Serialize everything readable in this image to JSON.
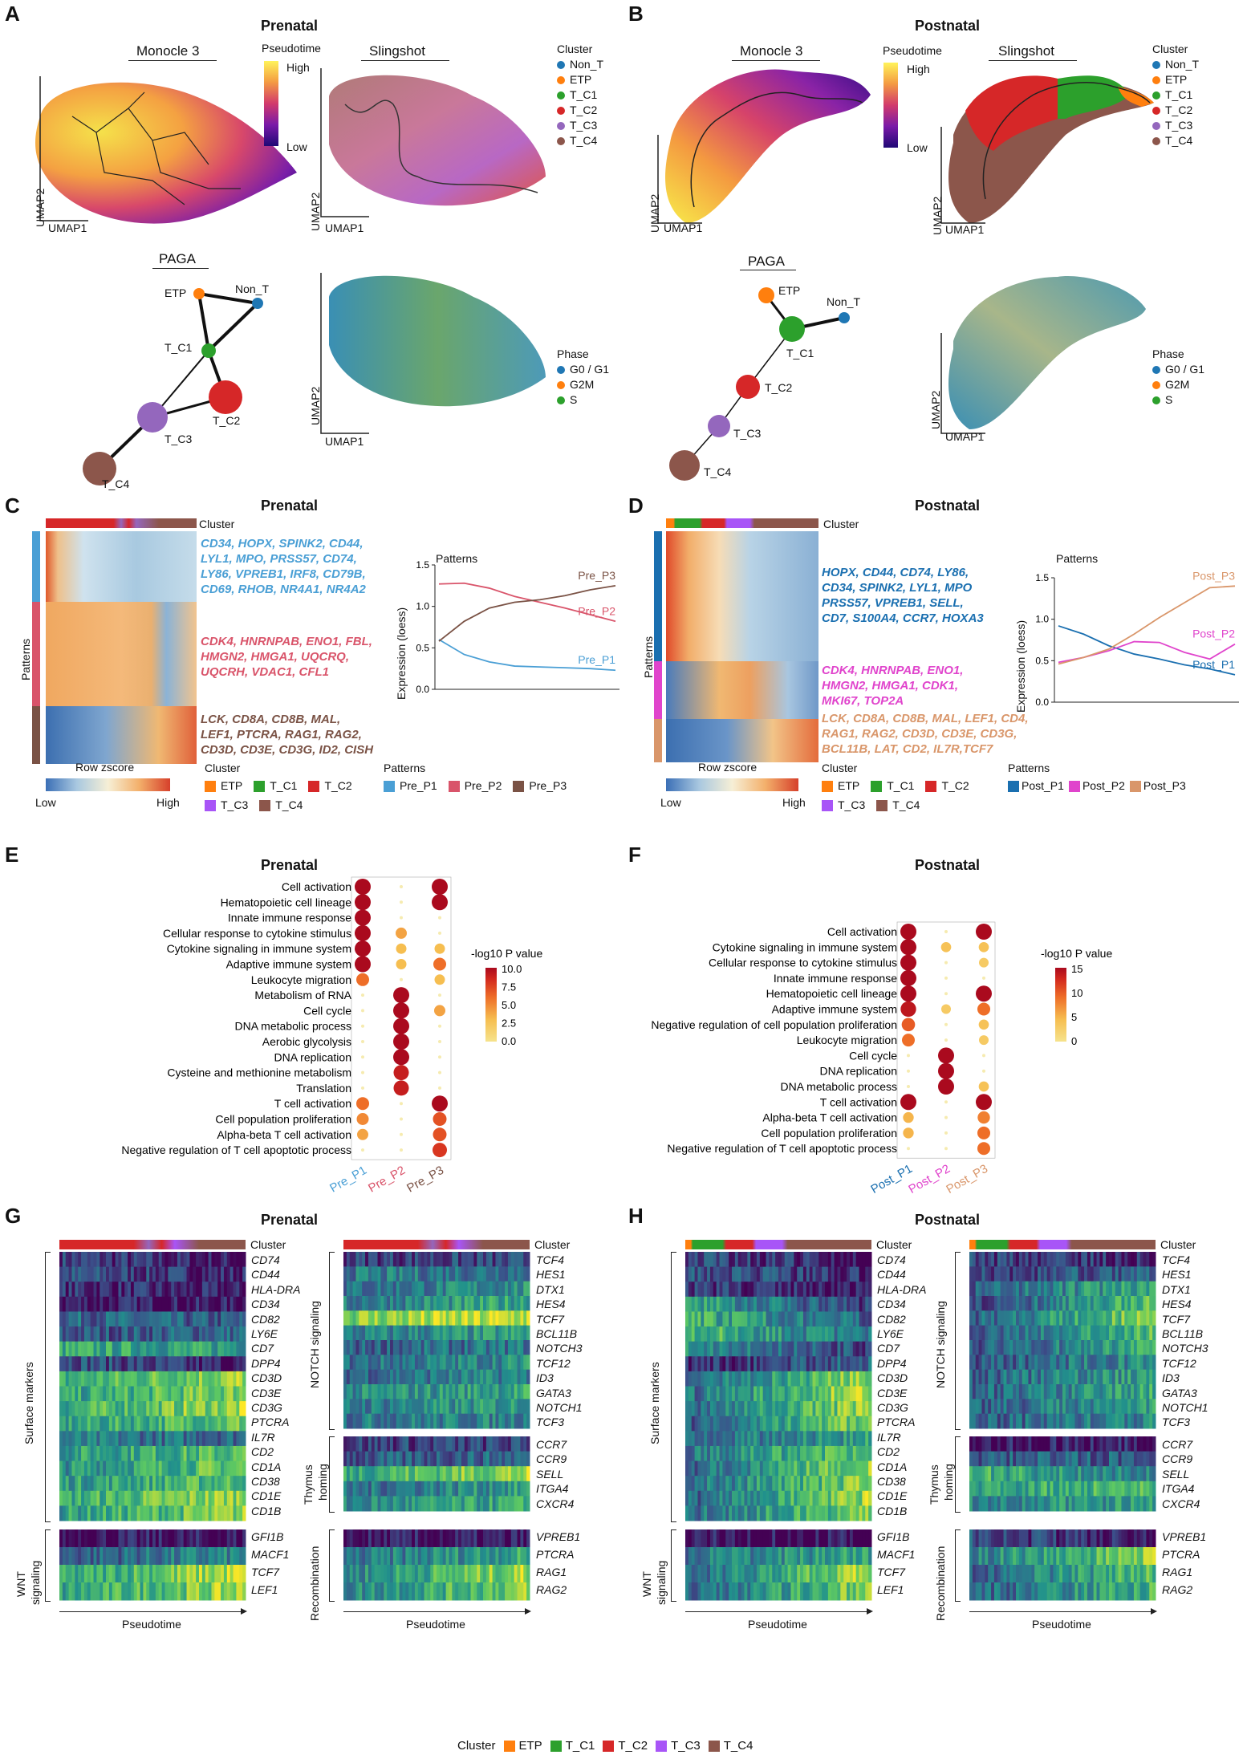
{
  "panels": {
    "A": {
      "label": "A",
      "title": "Prenatal"
    },
    "B": {
      "label": "B",
      "title": "Postnatal"
    },
    "C": {
      "label": "C",
      "title": "Prenatal"
    },
    "D": {
      "label": "D",
      "title": "Postnatal"
    },
    "E": {
      "label": "E",
      "title": "Prenatal"
    },
    "F": {
      "label": "F",
      "title": "Postnatal"
    },
    "G": {
      "label": "G",
      "title": "Prenatal"
    },
    "H": {
      "label": "H",
      "title": "Postnatal"
    }
  },
  "umap": {
    "monocle": "Monocle 3",
    "slingshot": "Slingshot",
    "paga": "PAGA",
    "umap1": "UMAP1",
    "umap2": "UMAP2",
    "pseudotime": "Pseudotime",
    "high": "High",
    "low": "Low",
    "cluster_title": "Cluster",
    "clusters": [
      "Non_T",
      "ETP",
      "T_C1",
      "T_C2",
      "T_C3",
      "T_C4"
    ],
    "cluster_colors": [
      "#1f77b4",
      "#ff7f0e",
      "#2ca02c",
      "#d62728",
      "#9467bd",
      "#8c564b"
    ],
    "phase_title": "Phase",
    "phases": [
      "G0 / G1",
      "G2M",
      "S"
    ],
    "phase_colors": [
      "#1f77b4",
      "#ff7f0e",
      "#2ca02c"
    ],
    "paga_nodes": [
      "ETP",
      "Non_T",
      "T_C1",
      "T_C2",
      "T_C3",
      "T_C4"
    ]
  },
  "heatmap": {
    "cluster": "Cluster",
    "patterns_axis": "Patterns",
    "row_zscore": "Row zscore",
    "low": "Low",
    "high": "High",
    "legend_cluster_title": "Cluster",
    "legend_clusters": [
      "ETP",
      "T_C1",
      "T_C2",
      "T_C3",
      "T_C4"
    ],
    "legend_patterns_title": "Patterns",
    "pre_patterns": [
      "Pre_P1",
      "Pre_P2",
      "Pre_P3"
    ],
    "post_patterns": [
      "Post_P1",
      "Post_P2",
      "Post_P3"
    ],
    "pre_genes": [
      "CD34, HOPX, SPINK2, CD44,",
      "LYL1, MPO, PRSS57, CD74,",
      "LY86, VPREB1, IRF8, CD79B,",
      "CD69, RHOB, NR4A1, NR4A2",
      "CDK4, HNRNPAB, ENO1, FBL,",
      "HMGN2, HMGA1, UQCRQ,",
      "UQCRH, VDAC1, CFL1",
      "LCK, CD8A, CD8B, MAL,",
      "LEF1, PTCRA, RAG1, RAG2,",
      "CD3D, CD3E, CD3G, ID2, CISH"
    ],
    "post_genes": [
      "HOPX, CD44, CD74, LY86,",
      "CD34, SPINK2, LYL1, MPO",
      "PRSS57, VPREB1, SELL,",
      "CD7, S100A4, CCR7, HOXA3",
      "CDK4, HNRNPAB, ENO1,",
      "HMGN2, HMGA1, CDK1,",
      "MKI67, TOP2A",
      "LCK, CD8A, CD8B, MAL, LEF1, CD4,",
      "RAG1, RAG2, CD3D, CD3E, CD3G,",
      "BCL11B, LAT, CD2, IL7R,TCF7"
    ],
    "gene_colors": [
      "#4a9fd5",
      "#d9546a",
      "#7a5245"
    ],
    "post_gene_colors": [
      "#1a6fb0",
      "#e044cc",
      "#d9966a"
    ]
  },
  "chart_data": [
    {
      "type": "line",
      "title": "Patterns",
      "ylabel": "Expression (loess)",
      "ylim": [
        0.0,
        1.5
      ],
      "yticks": [
        "0.0",
        "0.5",
        "1.0",
        "1.5"
      ],
      "series": [
        {
          "name": "Pre_P1",
          "values": [
            0.6,
            0.42,
            0.33,
            0.28,
            0.27,
            0.26,
            0.25,
            0.23
          ]
        },
        {
          "name": "Pre_P2",
          "values": [
            1.27,
            1.28,
            1.22,
            1.12,
            1.05,
            0.98,
            0.9,
            0.82
          ]
        },
        {
          "name": "Pre_P3",
          "values": [
            0.58,
            0.82,
            0.98,
            1.05,
            1.08,
            1.13,
            1.2,
            1.25
          ]
        }
      ]
    },
    {
      "type": "line",
      "title": "Patterns",
      "ylabel": "Expression (loess)",
      "ylim": [
        0.0,
        1.5
      ],
      "yticks": [
        "0.0",
        "0.5",
        "1.0",
        "1.5"
      ],
      "series": [
        {
          "name": "Post_P1",
          "values": [
            0.92,
            0.82,
            0.68,
            0.58,
            0.52,
            0.45,
            0.4,
            0.33
          ]
        },
        {
          "name": "Post_P2",
          "values": [
            0.48,
            0.54,
            0.62,
            0.73,
            0.72,
            0.6,
            0.52,
            0.7
          ]
        },
        {
          "name": "Post_P3",
          "values": [
            0.46,
            0.54,
            0.64,
            0.82,
            1.02,
            1.2,
            1.38,
            1.4
          ]
        }
      ]
    },
    {
      "type": "scatter",
      "title": "Prenatal",
      "legend_title": "-log10 P value",
      "legend_ticks": [
        "10.0",
        "7.5",
        "5.0",
        "2.5",
        "0.0"
      ],
      "vmax": 10,
      "categories": [
        "Pre_P1",
        "Pre_P2",
        "Pre_P3"
      ],
      "terms": [
        "Cell activation",
        "Hematopoietic cell lineage",
        "Innate immune response",
        "Cellular response to cytokine stimulus",
        "Cytokine signaling in immune system",
        "Adaptive immune system",
        "Leukocyte migration",
        "Metabolism of RNA",
        "Cell cycle",
        "DNA metabolic process",
        "Aerobic glycolysis",
        "DNA replication",
        "Cysteine and methionine metabolism",
        "Translation",
        "T cell activation",
        "Cell population proliferation",
        "Alpha-beta T cell activation",
        "Negative regulation of T cell apoptotic process"
      ],
      "values": [
        [
          10,
          0,
          10
        ],
        [
          10,
          0,
          10
        ],
        [
          10,
          0,
          0
        ],
        [
          10,
          4,
          0
        ],
        [
          10,
          3,
          3
        ],
        [
          10,
          3,
          6
        ],
        [
          6,
          0,
          3
        ],
        [
          0,
          10,
          0
        ],
        [
          0,
          10,
          4
        ],
        [
          0,
          10,
          0
        ],
        [
          0,
          10,
          0
        ],
        [
          0,
          10,
          0
        ],
        [
          0,
          9,
          0
        ],
        [
          0,
          9,
          0
        ],
        [
          6,
          0,
          10
        ],
        [
          5,
          0,
          7
        ],
        [
          4,
          0,
          7
        ],
        [
          0,
          0,
          8
        ]
      ]
    },
    {
      "type": "scatter",
      "title": "Postnatal",
      "legend_title": "-log10 P value",
      "legend_ticks": [
        "15",
        "10",
        "5",
        "0"
      ],
      "vmax": 15,
      "categories": [
        "Post_P1",
        "Post_P2",
        "Post_P3"
      ],
      "terms": [
        "Cell activation",
        "Cytokine signaling in immune system",
        "Cellular response to cytokine stimulus",
        "Innate immune response",
        "Hematopoietic cell lineage",
        "Adaptive immune system",
        "Negative regulation of cell population proliferation",
        "Leukocyte migration",
        "Cell cycle",
        "DNA replication",
        "DNA metabolic process",
        "T cell activation",
        "Alpha-beta T cell activation",
        "Cell population proliferation",
        "Negative regulation of T cell apoptotic process"
      ],
      "values": [
        [
          15,
          0,
          15
        ],
        [
          15,
          4,
          4
        ],
        [
          15,
          0,
          3
        ],
        [
          15,
          0,
          0
        ],
        [
          15,
          0,
          15
        ],
        [
          14,
          3,
          9
        ],
        [
          10,
          0,
          4
        ],
        [
          9,
          0,
          3
        ],
        [
          0,
          15,
          0
        ],
        [
          0,
          15,
          0
        ],
        [
          0,
          15,
          4
        ],
        [
          15,
          0,
          15
        ],
        [
          5,
          0,
          8
        ],
        [
          5,
          0,
          9
        ],
        [
          0,
          0,
          9
        ]
      ]
    }
  ],
  "genes_heat": {
    "cluster": "Cluster",
    "pseudotime": "Pseudotime",
    "surface_markers": "Surface markers",
    "wnt": [
      "WNT",
      "signaling"
    ],
    "notch": "NOTCH signaling",
    "thymus": [
      "Thymus",
      "homing"
    ],
    "recombination": "Recombination",
    "surface_genes": [
      "CD74",
      "CD44",
      "HLA-DRA",
      "CD34",
      "CD82",
      "LY6E",
      "CD7",
      "DPP4",
      "CD3D",
      "CD3E",
      "CD3G",
      "PTCRA",
      "IL7R",
      "CD2",
      "CD1A",
      "CD38",
      "CD1E",
      "CD1B"
    ],
    "wnt_genes": [
      "GFI1B",
      "MACF1",
      "TCF7",
      "LEF1"
    ],
    "notch_genes": [
      "TCF4",
      "HES1",
      "DTX1",
      "HES4",
      "TCF7",
      "BCL11B",
      "NOTCH3",
      "TCF12",
      "ID3",
      "GATA3",
      "NOTCH1",
      "TCF3"
    ],
    "thymus_genes": [
      "CCR7",
      "CCR9",
      "SELL",
      "ITGA4",
      "CXCR4"
    ],
    "recomb_genes": [
      "VPREB1",
      "PTCRA",
      "RAG1",
      "RAG2"
    ],
    "bottom_legend_title": "Cluster",
    "bottom_clusters": [
      "ETP",
      "T_C1",
      "T_C2",
      "T_C3",
      "T_C4"
    ]
  }
}
